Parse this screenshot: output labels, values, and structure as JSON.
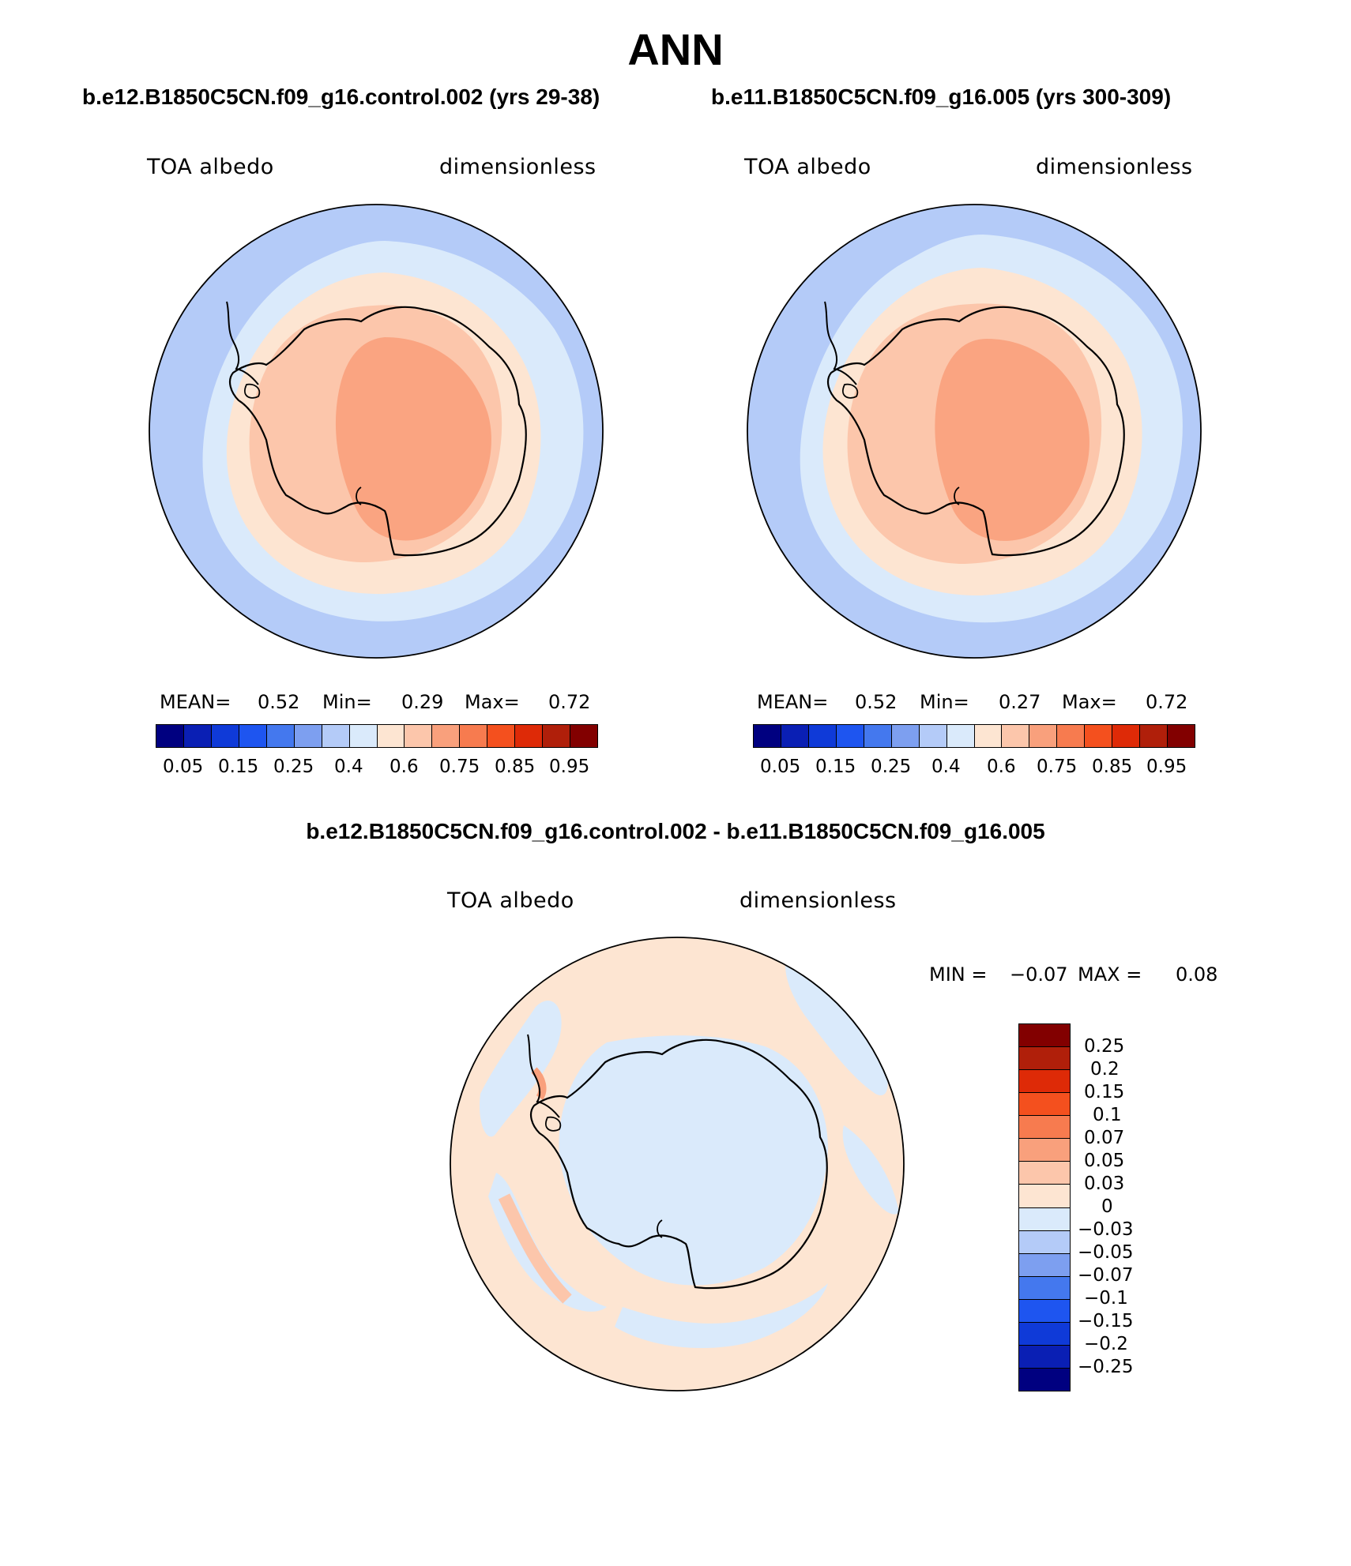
{
  "page_title": "ANN",
  "panels": [
    {
      "case_title": "b.e12.B1850C5CN.f09_g16.control.002 (yrs 29-38)",
      "left_label": "TOA albedo",
      "right_label": "dimensionless",
      "mean_label": "MEAN=",
      "mean_value": "0.52",
      "min_label": "Min=",
      "min_value": "0.29",
      "max_label": "Max=",
      "max_value": "0.72"
    },
    {
      "case_title": "b.e11.B1850C5CN.f09_g16.005 (yrs 300-309)",
      "left_label": "TOA albedo",
      "right_label": "dimensionless",
      "mean_label": "MEAN=",
      "mean_value": "0.52",
      "min_label": "Min=",
      "min_value": "0.27",
      "max_label": "Max=",
      "max_value": "0.72"
    }
  ],
  "diff_panel": {
    "case_title": "b.e12.B1850C5CN.f09_g16.control.002 - b.e11.B1850C5CN.f09_g16.005",
    "left_label": "TOA albedo",
    "right_label": "dimensionless",
    "min_label": "MIN =",
    "min_value": "−0.07",
    "max_label": "MAX =",
    "max_value": "0.08"
  },
  "colorbar_abs": {
    "colors": [
      "#000080",
      "#0a1fb4",
      "#0f3ad8",
      "#1e55f0",
      "#4478ee",
      "#7d9ff0",
      "#b4cbf8",
      "#daeafb",
      "#fde5d2",
      "#fcc6ab",
      "#f9a07c",
      "#f77b4f",
      "#f4501e",
      "#de2a07",
      "#b01f0a",
      "#820000"
    ],
    "ticks": [
      "0.05",
      "0.15",
      "0.25",
      "0.4",
      "0.6",
      "0.75",
      "0.85",
      "0.95"
    ]
  },
  "colorbar_diff": {
    "colors_top_to_bottom": [
      "#820000",
      "#b01f0a",
      "#de2a07",
      "#f4501e",
      "#f77b4f",
      "#f9a07c",
      "#fcc6ab",
      "#fde5d2",
      "#daeafb",
      "#b4cbf8",
      "#7d9ff0",
      "#4478ee",
      "#1e55f0",
      "#0f3ad8",
      "#0a1fb4",
      "#000080"
    ],
    "ticks": [
      "0.25",
      "0.2",
      "0.15",
      "0.1",
      "0.07",
      "0.05",
      "0.03",
      "0",
      "−0.03",
      "−0.05",
      "−0.07",
      "−0.1",
      "−0.15",
      "−0.2",
      "−0.25"
    ]
  }
}
